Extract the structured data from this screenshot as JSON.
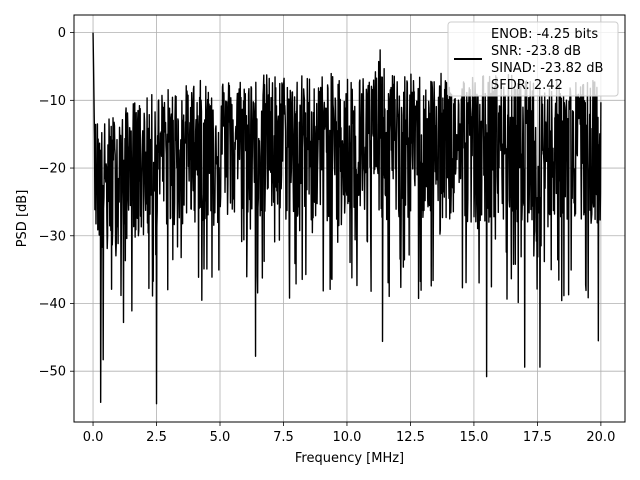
{
  "chart_data": {
    "type": "line",
    "title": "",
    "xlabel": "Frequency [MHz]",
    "ylabel": "PSD [dB]",
    "xlim": [
      -0.75,
      20.95
    ],
    "ylim": [
      -57.5,
      2.6
    ],
    "xticks": [
      0.0,
      2.5,
      5.0,
      7.5,
      10.0,
      12.5,
      15.0,
      17.5,
      20.0
    ],
    "xtick_labels": [
      "0.0",
      "2.5",
      "5.0",
      "7.5",
      "10.0",
      "12.5",
      "15.0",
      "17.5",
      "20.0"
    ],
    "yticks": [
      0,
      -10,
      -20,
      -30,
      -40,
      -50
    ],
    "ytick_labels": [
      "0",
      "−10",
      "−20",
      "−30",
      "−40",
      "−50"
    ],
    "grid": true,
    "legend_position": "top-right",
    "legend_lines": [
      "ENOB: -4.25 bits",
      "SNR: -23.8 dB",
      "SINAD: -23.82 dB",
      "SFDR: 2.42"
    ],
    "series_color": "#000000",
    "series": [
      {
        "x": [
          0.0,
          0.02,
          0.05,
          0.1,
          0.15,
          0.2,
          0.3,
          0.35,
          0.4,
          0.5,
          0.7,
          0.9,
          1.0,
          1.1,
          1.2,
          1.3,
          1.4,
          1.5,
          2.0,
          2.3,
          2.5,
          3.0,
          3.5,
          4.0,
          4.5,
          4.8,
          5.0,
          5.5,
          6.0,
          6.4,
          7.0,
          7.1,
          7.5,
          8.0,
          8.5,
          9.0,
          9.5,
          10.0,
          10.5,
          11.0,
          11.3,
          11.5,
          12.0,
          12.5,
          13.0,
          13.5,
          14.0,
          14.5,
          15.0,
          15.5,
          15.55,
          16.0,
          16.5,
          16.9,
          17.0,
          17.5,
          18.0,
          18.5,
          19.0,
          19.5,
          19.9,
          20.0
        ],
        "y_mean": [
          0,
          -6,
          -11,
          -18,
          -19,
          -19,
          -20,
          -22,
          -21,
          -22,
          -21,
          -21,
          -20,
          -19,
          -20,
          -19,
          -18,
          -18,
          -19,
          -18,
          -17,
          -17,
          -16,
          -16,
          -16,
          -15,
          -15,
          -16,
          -15,
          -15,
          -15,
          -16,
          -16,
          -16,
          -16,
          -16,
          -16,
          -16,
          -16,
          -16,
          -15,
          -16,
          -16,
          -16,
          -16,
          -16,
          -16,
          -16,
          -16,
          -16,
          -16,
          -16,
          -16,
          -16,
          -16,
          -16,
          -16,
          -16,
          -16,
          -16,
          -16,
          -16
        ],
        "peak_upper": [
          0,
          -5,
          -10,
          -13,
          -12,
          -12,
          -12,
          -14,
          -13,
          -13,
          -12,
          -12,
          -11,
          -12,
          -12,
          -11,
          -10,
          -10,
          -10,
          -9,
          -9,
          -8,
          -8,
          -7,
          -7,
          -6,
          -6,
          -7,
          -6,
          -6,
          -6,
          -6,
          -6,
          -6,
          -6,
          -6,
          -6,
          -6,
          -6,
          -6,
          -2,
          -6,
          -6,
          -6,
          -6,
          -6,
          -6,
          -6,
          -6,
          -6,
          -6,
          -6,
          -6,
          -7,
          -7,
          -7,
          -7,
          -7,
          -7,
          -7,
          -7,
          -7
        ],
        "notable_dips": [
          {
            "x": 0.3,
            "y": -54.6
          },
          {
            "x": 0.4,
            "y": -48.3
          },
          {
            "x": 1.2,
            "y": -42.8
          },
          {
            "x": 2.5,
            "y": -54.8
          },
          {
            "x": 6.4,
            "y": -47.8
          },
          {
            "x": 11.4,
            "y": -45.6
          },
          {
            "x": 15.5,
            "y": -50.8
          },
          {
            "x": 17.0,
            "y": -49.4
          },
          {
            "x": 17.6,
            "y": -49.4
          },
          {
            "x": 19.9,
            "y": -45.5
          }
        ]
      }
    ]
  }
}
